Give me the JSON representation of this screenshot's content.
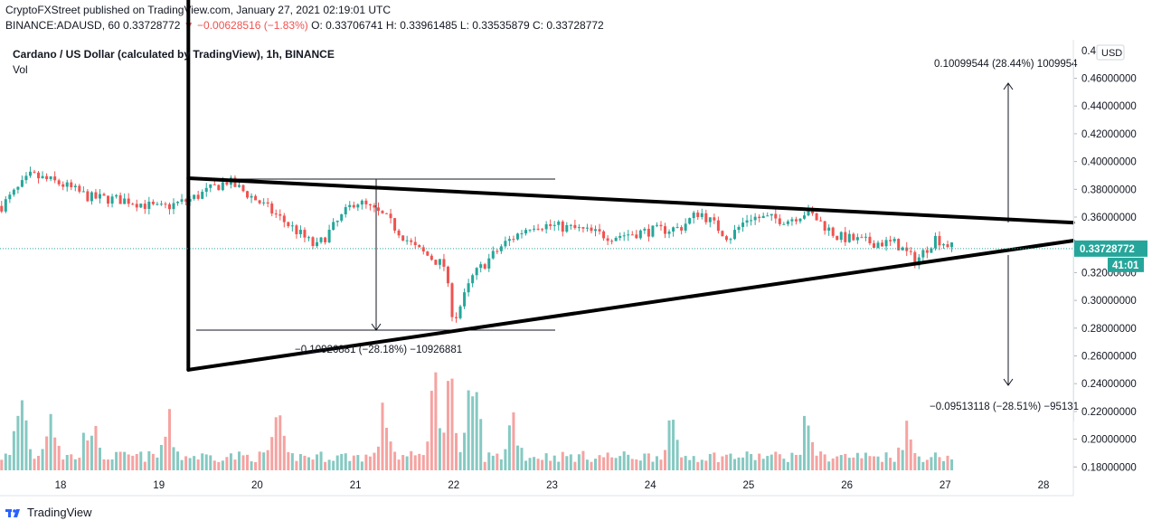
{
  "header": {
    "published": "CryptoFXStreet published on TradingView.com, January 27, 2021 02:19:01 UTC",
    "symbol_code": "BINANCE:ADAUSD, 60",
    "last_price": "0.33728772",
    "change": "▼ −0.00628516 (−1.83%)",
    "ohlc": "O: 0.33706741 H: 0.33961485 L: 0.33535879 C: 0.33728772"
  },
  "legend": {
    "symbol": "Cardano / US Dollar (calculated by TradingView), 1h, BINANCE",
    "volume": "Vol"
  },
  "price_axis": {
    "currency": "USD",
    "ticks": [
      "0.40000000",
      "0.38000000",
      "0.36000000",
      "0.34000000",
      "0.32000000",
      "0.30000000",
      "0.28000000",
      "0.26000000",
      "0.24000000",
      "0.22000000",
      "0.20000000",
      "0.18000000",
      "0.46000000",
      "0.44000000",
      "0.42000000"
    ],
    "top_partial": "0.4",
    "last_price_label": "0.33728772",
    "countdown": "41:01"
  },
  "annotations": {
    "up_measure": "0.10099544 (28.44%) 1009954",
    "down_measure": "−0.09513118 (−28.51%) −95131",
    "left_measure": "−0.10926881 (−28.18%) −10926881"
  },
  "footer": {
    "brand": "TradingView"
  },
  "colors": {
    "up": "#26a69a",
    "down": "#ef5350",
    "vol_up": "#86c9c2",
    "vol_down": "#f5a3a1",
    "last_price_bg": "#26a69a"
  },
  "chart_data": {
    "type": "candlestick",
    "title": "Cardano / US Dollar (calculated by TradingView), 1h, BINANCE",
    "x_ticks": [
      "18",
      "19",
      "20",
      "21",
      "22",
      "23",
      "24",
      "25",
      "26",
      "27",
      "28"
    ],
    "ylim": [
      0.175,
      0.475
    ],
    "close_path": [
      {
        "x": 17.4,
        "y": 0.368
      },
      {
        "x": 17.7,
        "y": 0.39
      },
      {
        "x": 18.0,
        "y": 0.384
      },
      {
        "x": 18.3,
        "y": 0.374
      },
      {
        "x": 18.7,
        "y": 0.372
      },
      {
        "x": 19.0,
        "y": 0.366
      },
      {
        "x": 19.3,
        "y": 0.372
      },
      {
        "x": 19.7,
        "y": 0.386
      },
      {
        "x": 20.0,
        "y": 0.372
      },
      {
        "x": 20.4,
        "y": 0.35
      },
      {
        "x": 20.6,
        "y": 0.338
      },
      {
        "x": 20.8,
        "y": 0.355
      },
      {
        "x": 21.0,
        "y": 0.372
      },
      {
        "x": 21.3,
        "y": 0.36
      },
      {
        "x": 21.6,
        "y": 0.338
      },
      {
        "x": 21.9,
        "y": 0.325
      },
      {
        "x": 22.0,
        "y": 0.285
      },
      {
        "x": 22.2,
        "y": 0.318
      },
      {
        "x": 22.5,
        "y": 0.34
      },
      {
        "x": 22.8,
        "y": 0.355
      },
      {
        "x": 23.2,
        "y": 0.352
      },
      {
        "x": 23.6,
        "y": 0.346
      },
      {
        "x": 24.0,
        "y": 0.35
      },
      {
        "x": 24.3,
        "y": 0.352
      },
      {
        "x": 24.5,
        "y": 0.364
      },
      {
        "x": 24.8,
        "y": 0.345
      },
      {
        "x": 25.0,
        "y": 0.36
      },
      {
        "x": 25.4,
        "y": 0.358
      },
      {
        "x": 25.6,
        "y": 0.364
      },
      {
        "x": 25.9,
        "y": 0.346
      },
      {
        "x": 26.2,
        "y": 0.342
      },
      {
        "x": 26.5,
        "y": 0.341
      },
      {
        "x": 26.7,
        "y": 0.328
      },
      {
        "x": 26.9,
        "y": 0.345
      },
      {
        "x": 27.1,
        "y": 0.337
      }
    ],
    "volume_peaks": [
      {
        "x": 17.6,
        "v": 0.7
      },
      {
        "x": 17.9,
        "v": 0.6
      },
      {
        "x": 18.3,
        "v": 0.5
      },
      {
        "x": 19.1,
        "v": 0.4
      },
      {
        "x": 20.2,
        "v": 0.45
      },
      {
        "x": 21.3,
        "v": 0.55
      },
      {
        "x": 21.8,
        "v": 0.85
      },
      {
        "x": 21.95,
        "v": 1.0
      },
      {
        "x": 22.2,
        "v": 0.9
      },
      {
        "x": 22.6,
        "v": 0.5
      },
      {
        "x": 24.2,
        "v": 0.4
      },
      {
        "x": 25.6,
        "v": 0.45
      },
      {
        "x": 26.6,
        "v": 0.35
      }
    ],
    "trendlines": [
      {
        "name": "upper",
        "from": {
          "x": 19.3,
          "y": 0.388
        },
        "to": {
          "x": 28.3,
          "y": 0.356
        }
      },
      {
        "name": "lower",
        "from": {
          "x": 19.3,
          "y": 0.25
        },
        "to": {
          "x": 28.3,
          "y": 0.343
        }
      },
      {
        "name": "base",
        "from": {
          "x": 19.3,
          "y": 0.25
        },
        "to": {
          "x": 19.3,
          "y": 0.388
        }
      }
    ],
    "last_price": 0.33728772
  }
}
